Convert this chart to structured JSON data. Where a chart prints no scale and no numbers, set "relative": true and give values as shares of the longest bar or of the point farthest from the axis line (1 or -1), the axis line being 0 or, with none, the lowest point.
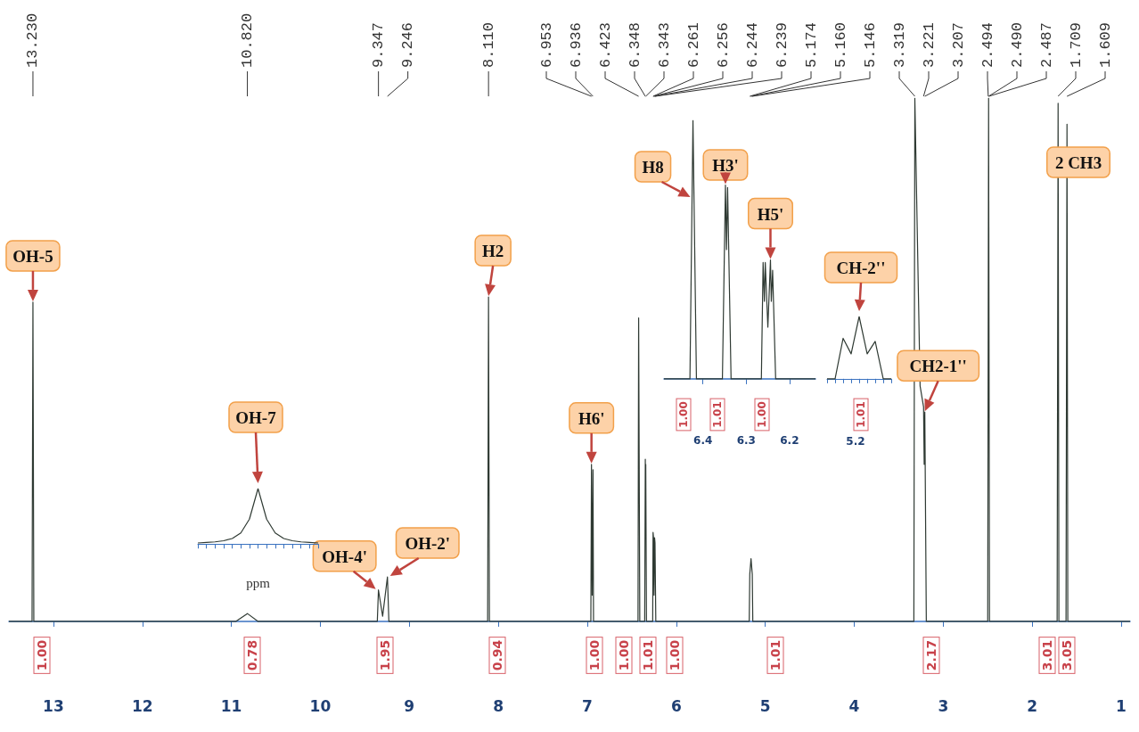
{
  "chart_data": [
    {
      "type": "line",
      "relative": true,
      "xlim": [
        13.5,
        0.9
      ],
      "xticks": [
        13,
        12,
        11,
        10,
        9,
        8,
        7,
        6,
        5,
        4,
        3,
        2,
        1
      ],
      "grid": false,
      "marker": "none",
      "line_style": "solid",
      "color": "#2f3a33",
      "x": [
        13.5,
        13.24,
        13.23,
        13.22,
        10.95,
        10.82,
        10.7,
        9.36,
        9.347,
        9.3,
        9.246,
        9.23,
        8.12,
        8.11,
        8.1,
        6.96,
        6.953,
        6.945,
        6.936,
        6.93,
        6.43,
        6.423,
        6.41,
        6.355,
        6.348,
        6.345,
        6.343,
        6.335,
        6.265,
        6.261,
        6.256,
        6.25,
        6.244,
        6.239,
        6.23,
        5.18,
        5.174,
        5.16,
        5.146,
        5.14,
        3.33,
        3.319,
        3.26,
        3.221,
        3.214,
        3.207,
        3.19,
        2.5,
        2.49,
        2.48,
        1.72,
        1.709,
        1.7,
        1.62,
        1.609,
        1.6,
        0.9
      ],
      "values": [
        0,
        0,
        0.61,
        0,
        0,
        0.015,
        0,
        0,
        0.06,
        0.01,
        0.085,
        0,
        0,
        0.62,
        0,
        0,
        0.3,
        0.05,
        0.29,
        0,
        0,
        0.58,
        0,
        0,
        0.31,
        0.2,
        0.3,
        0,
        0,
        0.17,
        0.16,
        0.05,
        0.16,
        0.15,
        0,
        0,
        0.09,
        0.12,
        0.09,
        0,
        0,
        1,
        0.45,
        0.41,
        0.3,
        0.4,
        0,
        0,
        1,
        0,
        0,
        0.99,
        0,
        0,
        0.95,
        0,
        0
      ],
      "annotations": [
        {
          "text": "OH-5",
          "x": 13.23,
          "y": 0.61
        },
        {
          "text": "OH-4'",
          "x": 9.347,
          "y": 0.06
        },
        {
          "text": "OH-2'",
          "x": 9.246,
          "y": 0.085
        },
        {
          "text": "H2",
          "x": 8.11,
          "y": 0.62
        },
        {
          "text": "H6'",
          "x": 6.953,
          "y": 0.3
        },
        {
          "text": "CH2-1''",
          "x": 3.207,
          "y": 0.4
        },
        "2 CH3",
        {
          "text": "13.230",
          "x": 13.23
        },
        {
          "text": "10.820",
          "x": 10.82
        },
        {
          "text": "9.347",
          "x": 9.347
        },
        {
          "text": "9.246",
          "x": 9.246
        },
        {
          "text": "8.110",
          "x": 8.11
        },
        {
          "text": "6.953",
          "x": 6.953
        },
        {
          "text": "6.936",
          "x": 6.936
        },
        {
          "text": "6.423",
          "x": 6.423
        },
        {
          "text": "6.348",
          "x": 6.348
        },
        {
          "text": "6.343",
          "x": 6.343
        },
        {
          "text": "6.261",
          "x": 6.261
        },
        {
          "text": "6.256",
          "x": 6.256
        },
        {
          "text": "6.244",
          "x": 6.244
        },
        {
          "text": "6.239",
          "x": 6.239
        },
        {
          "text": "5.174",
          "x": 5.174
        },
        {
          "text": "5.160",
          "x": 5.16
        },
        {
          "text": "5.146",
          "x": 5.146
        },
        {
          "text": "3.319",
          "x": 3.319
        },
        {
          "text": "3.221",
          "x": 3.221
        },
        {
          "text": "3.207",
          "x": 3.207
        },
        {
          "text": "2.494",
          "x": 2.494
        },
        {
          "text": "2.490",
          "x": 2.49
        },
        {
          "text": "2.487",
          "x": 2.487
        },
        {
          "text": "1.709",
          "x": 1.709
        },
        {
          "text": "1.609",
          "x": 1.609
        },
        "1.00",
        "0.78",
        "1.95",
        "0.94",
        "1.00",
        "1.00",
        "1.01",
        "1.00",
        "1.01",
        "2.17",
        "3.01",
        "3.05"
      ]
    },
    {
      "type": "line",
      "relative": true,
      "xlim": [
        6.49,
        6.14
      ],
      "xticks": [
        6.4,
        6.3,
        6.2
      ],
      "grid": false,
      "marker": "none",
      "line_style": "solid",
      "color": "#2f3a33",
      "x": [
        6.49,
        6.43,
        6.423,
        6.415,
        6.355,
        6.348,
        6.3455,
        6.343,
        6.335,
        6.265,
        6.261,
        6.258,
        6.256,
        6.25,
        6.244,
        6.242,
        6.239,
        6.232,
        6.14
      ],
      "values": [
        0,
        0,
        1,
        0,
        0,
        0.75,
        0.5,
        0.74,
        0,
        0,
        0.45,
        0.3,
        0.45,
        0.2,
        0.46,
        0.3,
        0.42,
        0,
        0
      ],
      "annotations": [
        {
          "text": "H8",
          "x": 6.423,
          "y": 0.7
        },
        {
          "text": "H3'",
          "x": 6.348,
          "y": 0.75
        },
        {
          "text": "H5'",
          "x": 6.244,
          "y": 0.46
        },
        "1.00",
        "1.01",
        "1.00"
      ]
    },
    {
      "type": "line",
      "relative": true,
      "grid": false,
      "marker": "none",
      "line_style": "solid",
      "color": "#2f3a33",
      "categories": [
        null,
        null,
        null,
        null,
        null,
        null,
        null,
        null,
        null
      ],
      "values": [
        0,
        0,
        0.65,
        0.4,
        1,
        0.4,
        0.6,
        0,
        0
      ],
      "annotations": [
        "CH-2''",
        "1.01",
        "5.2"
      ]
    },
    {
      "type": "line",
      "relative": true,
      "grid": false,
      "marker": "none",
      "line_style": "solid",
      "color": "#2f3a33",
      "xlabel": "ppm",
      "categories": [
        null,
        null,
        null,
        null,
        null,
        null,
        null,
        null,
        null,
        null,
        null,
        null,
        null,
        null,
        null
      ],
      "values": [
        0.02,
        0.03,
        0.04,
        0.06,
        0.1,
        0.2,
        0.45,
        1,
        0.45,
        0.2,
        0.1,
        0.06,
        0.04,
        0.03,
        0.02
      ],
      "annotations": [
        "OH-7"
      ]
    }
  ]
}
